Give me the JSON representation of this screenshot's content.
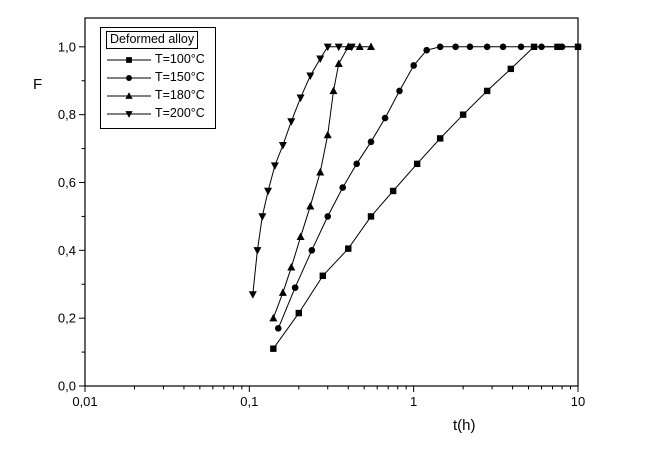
{
  "chart_data": {
    "type": "scatter",
    "title": "",
    "xlabel": "t(h)",
    "ylabel": "F",
    "x_scale": "log",
    "xlim": [
      0.01,
      10
    ],
    "ylim": [
      0.0,
      1.085
    ],
    "grid": false,
    "x_ticks": {
      "values": [
        0.01,
        0.1,
        1,
        10
      ],
      "labels": [
        "0,01",
        "0,1",
        "1",
        "10"
      ]
    },
    "y_ticks": {
      "values": [
        0.0,
        0.2,
        0.4,
        0.6,
        0.8,
        1.0
      ],
      "labels": [
        "0,0",
        "0,2",
        "0,4",
        "0,6",
        "0,8",
        "1,0"
      ]
    },
    "legend": {
      "title": "Deformed alloy",
      "position": "top-left"
    },
    "line_color": "#000000",
    "series": [
      {
        "name": "T=100°C",
        "marker": "square",
        "color": "#000000",
        "points": [
          [
            0.14,
            0.11
          ],
          [
            0.2,
            0.215
          ],
          [
            0.28,
            0.325
          ],
          [
            0.4,
            0.405
          ],
          [
            0.55,
            0.5
          ],
          [
            0.75,
            0.575
          ],
          [
            1.05,
            0.655
          ],
          [
            1.45,
            0.73
          ],
          [
            2.0,
            0.8
          ],
          [
            2.8,
            0.87
          ],
          [
            3.9,
            0.935
          ],
          [
            5.4,
            1.0
          ],
          [
            7.5,
            1.0
          ],
          [
            10,
            1.0
          ]
        ]
      },
      {
        "name": "T=150°C",
        "marker": "circle",
        "color": "#000000",
        "points": [
          [
            0.15,
            0.17
          ],
          [
            0.19,
            0.29
          ],
          [
            0.24,
            0.4
          ],
          [
            0.3,
            0.5
          ],
          [
            0.37,
            0.585
          ],
          [
            0.45,
            0.655
          ],
          [
            0.55,
            0.72
          ],
          [
            0.67,
            0.79
          ],
          [
            0.82,
            0.87
          ],
          [
            1.0,
            0.945
          ],
          [
            1.2,
            0.99
          ],
          [
            1.45,
            1.0
          ],
          [
            1.8,
            1.0
          ],
          [
            2.2,
            1.0
          ],
          [
            2.8,
            1.0
          ],
          [
            3.5,
            1.0
          ],
          [
            4.5,
            1.0
          ],
          [
            6.0,
            1.0
          ],
          [
            8.0,
            1.0
          ],
          [
            10,
            1.0
          ]
        ]
      },
      {
        "name": "T=180°C",
        "marker": "triangle-up",
        "color": "#000000",
        "points": [
          [
            0.14,
            0.2
          ],
          [
            0.16,
            0.275
          ],
          [
            0.18,
            0.35
          ],
          [
            0.205,
            0.44
          ],
          [
            0.235,
            0.53
          ],
          [
            0.27,
            0.63
          ],
          [
            0.3,
            0.74
          ],
          [
            0.325,
            0.87
          ],
          [
            0.35,
            0.95
          ],
          [
            0.4,
            1.0
          ],
          [
            0.47,
            1.0
          ],
          [
            0.55,
            1.0
          ]
        ]
      },
      {
        "name": "T=200°C",
        "marker": "triangle-down",
        "color": "#000000",
        "points": [
          [
            0.105,
            0.27
          ],
          [
            0.112,
            0.4
          ],
          [
            0.12,
            0.5
          ],
          [
            0.13,
            0.575
          ],
          [
            0.143,
            0.65
          ],
          [
            0.16,
            0.71
          ],
          [
            0.18,
            0.78
          ],
          [
            0.205,
            0.85
          ],
          [
            0.235,
            0.915
          ],
          [
            0.27,
            0.965
          ],
          [
            0.3,
            1.0
          ],
          [
            0.35,
            1.0
          ],
          [
            0.42,
            1.0
          ]
        ]
      }
    ]
  }
}
